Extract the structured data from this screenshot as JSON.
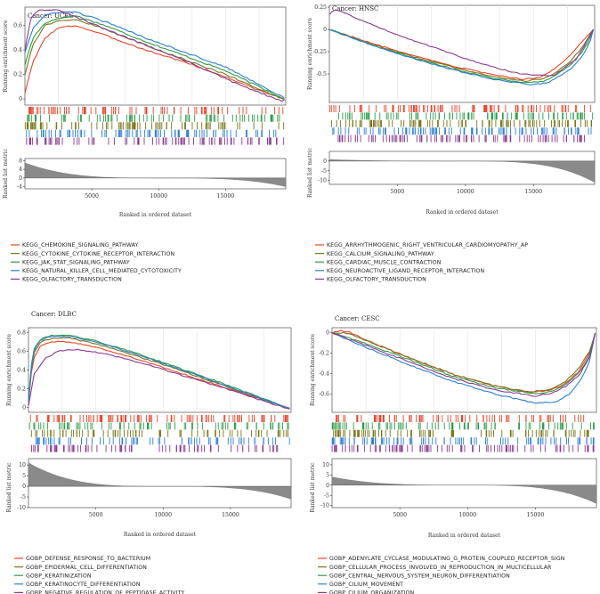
{
  "chart_data": [
    {
      "type": "line",
      "title": "Cancer: UCEC",
      "ylabel_top": "Running enrichment score",
      "ylabel_bottom": "Ranked list metric",
      "xlabel": "Ranked in ordered dataset",
      "xlim": [
        0,
        19500
      ],
      "x_ticks": [
        5000,
        10000,
        15000
      ],
      "es_ylim": [
        -0.05,
        0.75
      ],
      "es_ticks": [
        0.0,
        0.2,
        0.4,
        0.6
      ],
      "metric_ylim": [
        -5,
        9
      ],
      "metric_ticks": [
        8,
        4,
        0,
        -4
      ],
      "metric_profile": {
        "start": 7,
        "end": -4
      },
      "series": [
        {
          "name": "KEGG_CHEMOKINE_SIGNALING_PATHWAY",
          "color": "#e8442b",
          "x": [
            0,
            600,
            1500,
            2500,
            3800,
            6000,
            9000,
            12000,
            15000,
            17500,
            18800,
            19400
          ],
          "y": [
            0.05,
            0.3,
            0.5,
            0.58,
            0.6,
            0.52,
            0.4,
            0.3,
            0.18,
            0.07,
            0.02,
            0.0
          ]
        },
        {
          "name": "KEGG_CYTOKINE_CYTOKINE_RECEPTOR_INTERACTION",
          "color": "#7a7418",
          "x": [
            0,
            600,
            1500,
            2500,
            3800,
            6000,
            9000,
            12000,
            15000,
            17500,
            18800,
            19400
          ],
          "y": [
            0.2,
            0.45,
            0.6,
            0.64,
            0.65,
            0.57,
            0.44,
            0.32,
            0.2,
            0.08,
            0.02,
            0.0
          ]
        },
        {
          "name": "KEGG_JAK_STAT_SIGNALING_PATHWAY",
          "color": "#2f9b4a",
          "x": [
            0,
            600,
            1500,
            2500,
            3800,
            6000,
            9000,
            12000,
            15000,
            17500,
            18800,
            19400
          ],
          "y": [
            0.28,
            0.5,
            0.62,
            0.66,
            0.68,
            0.6,
            0.47,
            0.35,
            0.23,
            0.1,
            0.03,
            0.0
          ]
        },
        {
          "name": "KEGG_NATURAL_KILLER_CELL_MEDIATED_CYTOTOXICITY",
          "color": "#2b7fd4",
          "x": [
            0,
            600,
            1500,
            2500,
            3800,
            6000,
            9000,
            12000,
            15000,
            17500,
            18800,
            19400
          ],
          "y": [
            0.38,
            0.58,
            0.68,
            0.71,
            0.71,
            0.63,
            0.5,
            0.38,
            0.26,
            0.12,
            0.04,
            0.01
          ]
        },
        {
          "name": "KEGG_OLFACTORY_TRANSDUCTION",
          "color": "#8b3a8f",
          "x": [
            0,
            400,
            900,
            1600,
            2600,
            4000,
            6500,
            9500,
            12500,
            15500,
            17800,
            19200,
            19400
          ],
          "y": [
            0.4,
            0.65,
            0.72,
            0.73,
            0.72,
            0.66,
            0.55,
            0.42,
            0.29,
            0.14,
            0.04,
            -0.02,
            0.0
          ]
        }
      ]
    },
    {
      "type": "line",
      "title": "Cancer: HNSC",
      "ylabel_top": "Running enrichment score",
      "ylabel_bottom": "Ranked list metric",
      "xlabel": "Ranked in ordered dataset",
      "xlim": [
        0,
        19500
      ],
      "x_ticks": [
        5000,
        10000,
        15000
      ],
      "es_ylim": [
        -0.82,
        0.27
      ],
      "es_ticks": [
        0.25,
        0.0,
        -0.25,
        -0.5
      ],
      "metric_ylim": [
        -12,
        5
      ],
      "metric_ticks": [
        0,
        -5,
        -10
      ],
      "metric_profile": {
        "start": 0.8,
        "end": -11
      },
      "series": [
        {
          "name": "KEGG_ARRHYTHMOGENIC_RIGHT_VENTRICULAR_CARDIOMYOPATHY_AP",
          "color": "#e8442b",
          "x": [
            0,
            3000,
            6000,
            9000,
            12000,
            14200,
            15500,
            16500,
            17500,
            18500,
            19100,
            19400
          ],
          "y": [
            0.0,
            -0.15,
            -0.29,
            -0.41,
            -0.51,
            -0.56,
            -0.54,
            -0.45,
            -0.32,
            -0.15,
            -0.05,
            0.0
          ]
        },
        {
          "name": "KEGG_CALCIUM_SIGNALING_PATHWAY",
          "color": "#7a7418",
          "x": [
            0,
            3000,
            6000,
            9000,
            12000,
            14500,
            15800,
            16800,
            17700,
            18600,
            19100,
            19400
          ],
          "y": [
            0.0,
            -0.16,
            -0.3,
            -0.42,
            -0.53,
            -0.58,
            -0.55,
            -0.47,
            -0.36,
            -0.2,
            -0.08,
            0.0
          ]
        },
        {
          "name": "KEGG_CARDIAC_MUSCLE_CONTRACTION",
          "color": "#2f9b4a",
          "x": [
            0,
            3000,
            6000,
            9000,
            12000,
            14500,
            15800,
            16800,
            17700,
            18600,
            19100,
            19400
          ],
          "y": [
            0.0,
            -0.17,
            -0.31,
            -0.44,
            -0.55,
            -0.6,
            -0.58,
            -0.5,
            -0.4,
            -0.25,
            -0.12,
            0.0
          ]
        },
        {
          "name": "KEGG_NEUROACTIVE_LIGAND_RECEPTOR_INTERACTION",
          "color": "#2b7fd4",
          "x": [
            0,
            3000,
            6000,
            9000,
            12000,
            14800,
            16000,
            17000,
            17900,
            18700,
            19200,
            19400
          ],
          "y": [
            0.0,
            -0.17,
            -0.32,
            -0.45,
            -0.56,
            -0.62,
            -0.6,
            -0.52,
            -0.42,
            -0.28,
            -0.12,
            0.0
          ]
        },
        {
          "name": "KEGG_OLFACTORY_TRANSDUCTION",
          "color": "#8b3a8f",
          "x": [
            0,
            300,
            700,
            1500,
            3000,
            5000,
            8000,
            11000,
            14000,
            16500,
            18200,
            19400
          ],
          "y": [
            0.17,
            0.22,
            0.21,
            0.16,
            0.06,
            -0.06,
            -0.22,
            -0.38,
            -0.5,
            -0.52,
            -0.33,
            0.0
          ]
        }
      ]
    },
    {
      "type": "line",
      "title": "Cancer: DLBC",
      "ylabel_top": "Running enrichment score",
      "ylabel_bottom": "Ranked list metric",
      "xlabel": "Ranked in ordered dataset",
      "xlim": [
        0,
        19500
      ],
      "x_ticks": [
        5000,
        10000,
        15000
      ],
      "es_ylim": [
        -0.05,
        0.85
      ],
      "es_ticks": [
        0.8,
        0.6,
        0.4,
        0.2,
        0.0
      ],
      "metric_ylim": [
        -10,
        13
      ],
      "metric_ticks": [
        10,
        5,
        0,
        -5,
        -10
      ],
      "metric_profile": {
        "start": 11,
        "end": -6
      },
      "series": [
        {
          "name": "GOBP_DEFENSE_RESPONSE_TO_BACTERIUM",
          "color": "#e8442b",
          "x": [
            0,
            300,
            900,
            1800,
            3000,
            5000,
            8000,
            11000,
            14000,
            17000,
            18800,
            19400
          ],
          "y": [
            0.05,
            0.5,
            0.66,
            0.7,
            0.7,
            0.64,
            0.52,
            0.38,
            0.24,
            0.1,
            0.02,
            -0.01
          ]
        },
        {
          "name": "GOBP_EPIDERMAL_CELL_DIFFERENTIATION",
          "color": "#7a7418",
          "x": [
            0,
            300,
            900,
            1800,
            3000,
            5000,
            8000,
            11000,
            14000,
            17000,
            18800,
            19400
          ],
          "y": [
            0.06,
            0.55,
            0.7,
            0.74,
            0.74,
            0.68,
            0.55,
            0.41,
            0.26,
            0.11,
            0.02,
            -0.01
          ]
        },
        {
          "name": "GOBP_KERATINIZATION",
          "color": "#2f9b4a",
          "x": [
            0,
            300,
            900,
            1800,
            3000,
            5000,
            8000,
            11000,
            14000,
            17000,
            18800,
            19400
          ],
          "y": [
            0.08,
            0.6,
            0.73,
            0.77,
            0.77,
            0.71,
            0.58,
            0.43,
            0.28,
            0.12,
            0.02,
            -0.01
          ]
        },
        {
          "name": "GOBP_KERATINOCYTE_DIFFERENTIATION",
          "color": "#2b7fd4",
          "x": [
            0,
            300,
            900,
            1800,
            3000,
            5000,
            8000,
            11000,
            14000,
            17000,
            18800,
            19400
          ],
          "y": [
            0.07,
            0.58,
            0.72,
            0.76,
            0.76,
            0.7,
            0.57,
            0.42,
            0.27,
            0.11,
            0.02,
            -0.01
          ]
        },
        {
          "name": "GOBP_NEGATIVE_REGULATION_OF_PEPTIDASE_ACTIVITY",
          "color": "#8b3a8f",
          "x": [
            0,
            400,
            1200,
            2200,
            3500,
            5500,
            8500,
            11500,
            14500,
            17000,
            18800,
            19400
          ],
          "y": [
            0.02,
            0.35,
            0.52,
            0.6,
            0.62,
            0.58,
            0.47,
            0.34,
            0.21,
            0.09,
            0.01,
            -0.02
          ]
        }
      ]
    },
    {
      "type": "line",
      "title": "Cancer: CESC",
      "ylabel_top": "Running enrichment score",
      "ylabel_bottom": "Ranked list metric",
      "xlabel": "Ranked in ordered dataset",
      "xlim": [
        0,
        19500
      ],
      "x_ticks": [
        5000,
        10000,
        15000
      ],
      "es_ylim": [
        -0.78,
        0.05
      ],
      "es_ticks": [
        0.0,
        -0.2,
        -0.4,
        -0.6
      ],
      "metric_ylim": [
        -11,
        13
      ],
      "metric_ticks": [
        10,
        5,
        0,
        -5,
        -10
      ],
      "metric_profile": {
        "start": 4,
        "end": -9
      },
      "series": [
        {
          "name": "GOBP_ADENYLATE_CYCLASE_MODULATING_G_PROTEIN_COUPLED_RECEPTOR_SIGN",
          "color": "#e8442b",
          "x": [
            0,
            600,
            1200,
            3000,
            6000,
            9000,
            12000,
            14500,
            16000,
            17200,
            18200,
            19000,
            19400
          ],
          "y": [
            0.0,
            0.02,
            0.01,
            -0.1,
            -0.26,
            -0.41,
            -0.52,
            -0.58,
            -0.57,
            -0.5,
            -0.38,
            -0.2,
            0.0
          ]
        },
        {
          "name": "GOBP_CELLULAR_PROCESS_INVOLVED_IN_REPRODUCTION_IN_MULTICELLULAR",
          "color": "#7a7418",
          "x": [
            0,
            800,
            1500,
            3000,
            6000,
            9000,
            12000,
            14500,
            16000,
            17200,
            18200,
            19000,
            19400
          ],
          "y": [
            0.0,
            0.0,
            -0.02,
            -0.1,
            -0.26,
            -0.41,
            -0.52,
            -0.58,
            -0.56,
            -0.48,
            -0.35,
            -0.18,
            0.0
          ]
        },
        {
          "name": "GOBP_CENTRAL_NERVOUS_SYSTEM_NEURON_DIFFERENTIATION",
          "color": "#2f9b4a",
          "x": [
            0,
            1000,
            3000,
            6000,
            9000,
            12000,
            15000,
            16300,
            17300,
            18300,
            19000,
            19400
          ],
          "y": [
            0.0,
            -0.04,
            -0.13,
            -0.28,
            -0.43,
            -0.54,
            -0.6,
            -0.57,
            -0.5,
            -0.38,
            -0.22,
            0.0
          ]
        },
        {
          "name": "GOBP_CILIUM_MOVEMENT",
          "color": "#2b7fd4",
          "x": [
            0,
            1000,
            3000,
            6000,
            9000,
            12000,
            15000,
            16500,
            17500,
            18400,
            19000,
            19400
          ],
          "y": [
            0.0,
            -0.06,
            -0.17,
            -0.33,
            -0.48,
            -0.6,
            -0.69,
            -0.68,
            -0.6,
            -0.45,
            -0.28,
            0.0
          ]
        },
        {
          "name": "GOBP_CILIUM_ORGANIZATION",
          "color": "#8b3a8f",
          "x": [
            0,
            1000,
            3000,
            6000,
            9000,
            12000,
            15000,
            16300,
            17300,
            18300,
            19000,
            19400
          ],
          "y": [
            0.0,
            -0.05,
            -0.15,
            -0.3,
            -0.45,
            -0.56,
            -0.62,
            -0.59,
            -0.52,
            -0.4,
            -0.24,
            0.0
          ]
        }
      ]
    }
  ]
}
